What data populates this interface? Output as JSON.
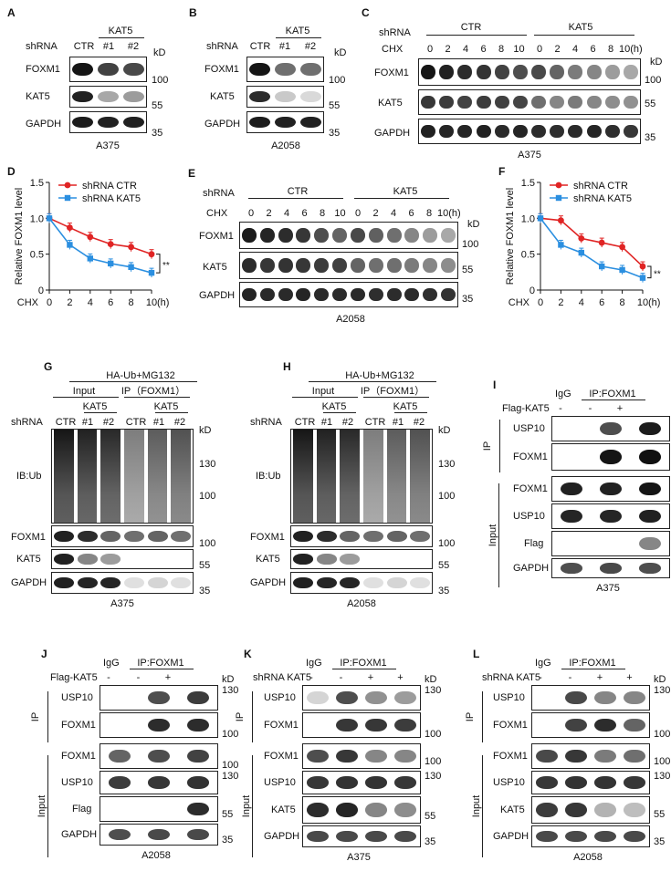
{
  "common": {
    "shrna": "shRNA",
    "ctr": "CTR",
    "kat5": "KAT5",
    "kd": "kD",
    "chx": "CHX",
    "sh1": "#1",
    "sh2": "#2",
    "minus": "-",
    "plus": "+",
    "igg": "IgG",
    "ip_foxm1": "IP:FOXM1",
    "ip_foxm1_paren": "IP（FOXM1）",
    "input": "Input",
    "ip": "IP",
    "flag_kat5": "Flag-KAT5",
    "shrna_kat5": "shRNA KAT5",
    "ha_ub": "HA-Ub+MG132",
    "ib_ub": "IB:Ub",
    "foxm1": "FOXM1",
    "gapdh": "GAPDH",
    "usp10": "USP10",
    "flag": "Flag",
    "a375": "A375",
    "a2058": "A2058",
    "mw100": "100",
    "mw55": "55",
    "mw35": "35",
    "mw130": "130",
    "hours": [
      "0",
      "2",
      "4",
      "6",
      "8",
      "10"
    ],
    "hours_last": "10(h)"
  },
  "panels": {
    "a": "A",
    "b": "B",
    "c": "C",
    "d": "D",
    "e": "E",
    "f": "F",
    "g": "G",
    "h": "H",
    "i": "I",
    "j": "J",
    "k": "K",
    "l": "L"
  },
  "chart_data": [
    {
      "type": "line",
      "panel": "D",
      "xlabel": "CHX",
      "xunit": "(h)",
      "ylabel": "Relative FOXM1 level",
      "x": [
        0,
        2,
        4,
        6,
        8,
        10
      ],
      "xlim": [
        0,
        10
      ],
      "ylim": [
        0,
        1.5
      ],
      "yticks": [
        "0",
        "0.5",
        "1.0",
        "1.5"
      ],
      "xticks": [
        "0",
        "2",
        "4",
        "6",
        "8",
        "10"
      ],
      "legend": "top-right",
      "significance": "**",
      "series": [
        {
          "name": "shRNA CTR",
          "color": "#e02424",
          "values": [
            1.0,
            0.87,
            0.74,
            0.64,
            0.6,
            0.5
          ]
        },
        {
          "name": "shRNA KAT5",
          "color": "#2b8fe0",
          "values": [
            1.0,
            0.63,
            0.44,
            0.37,
            0.32,
            0.24
          ]
        }
      ]
    },
    {
      "type": "line",
      "panel": "F",
      "xlabel": "CHX",
      "xunit": "(h)",
      "ylabel": "Relative FOXM1 level",
      "x": [
        0,
        2,
        4,
        6,
        8,
        10
      ],
      "xlim": [
        0,
        10
      ],
      "ylim": [
        0,
        1.5
      ],
      "yticks": [
        "0",
        "0.5",
        "1.0",
        "1.5"
      ],
      "xticks": [
        "0",
        "2",
        "4",
        "6",
        "8",
        "10"
      ],
      "legend": "top-right",
      "significance": "**",
      "series": [
        {
          "name": "shRNA CTR",
          "color": "#e02424",
          "values": [
            1.0,
            0.97,
            0.72,
            0.66,
            0.6,
            0.33
          ]
        },
        {
          "name": "shRNA KAT5",
          "color": "#2b8fe0",
          "values": [
            1.0,
            0.63,
            0.52,
            0.33,
            0.28,
            0.17
          ]
        }
      ]
    }
  ]
}
